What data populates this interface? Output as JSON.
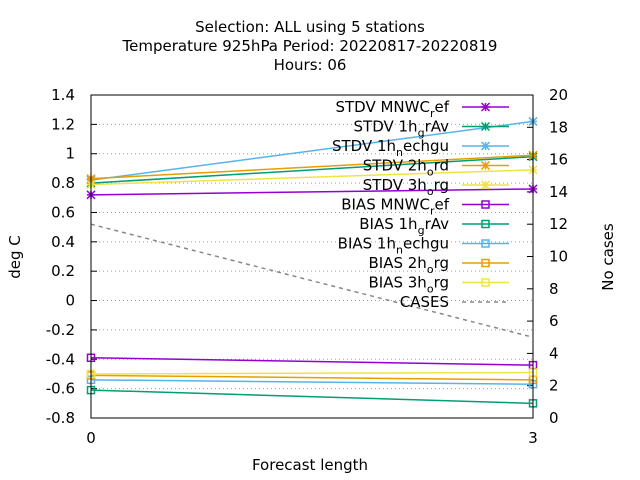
{
  "chart_data": {
    "type": "line",
    "title_lines": [
      "Selection: ALL using     5 stations",
      "Temperature 925hPa   Period: 20220817-20220819",
      "Hours:  06"
    ],
    "xlabel": "Forecast length",
    "ylabel": "deg C",
    "y2label": "No cases",
    "x": [
      0,
      3
    ],
    "xlim": [
      0,
      3
    ],
    "xticks": [
      "0",
      "3"
    ],
    "ylim": [
      -0.8,
      1.4
    ],
    "yticks": [
      "1.4",
      "1.2",
      "1",
      "0.8",
      "0.6",
      "0.4",
      "0.2",
      "0",
      "-0.2",
      "-0.4",
      "-0.6",
      "-0.8"
    ],
    "y2lim": [
      0,
      20
    ],
    "y2ticks": [
      "20",
      "18",
      "16",
      "14",
      "12",
      "10",
      "8",
      "6",
      "4",
      "2",
      "0"
    ],
    "grid": true,
    "legend_position": "top-right",
    "series": [
      {
        "name": "STDV MNWC_ref",
        "label_main": "STDV MNWC",
        "label_sub": "r",
        "label_tail": "ef",
        "color": "#9400d3",
        "marker": "x",
        "values": [
          0.72,
          0.76
        ],
        "axis": "y"
      },
      {
        "name": "STDV 1h_grAv",
        "label_main": "STDV 1h",
        "label_sub": "g",
        "label_tail": "rAv",
        "color": "#009e73",
        "marker": "x",
        "values": [
          0.8,
          0.98
        ],
        "axis": "y"
      },
      {
        "name": "STDV 1h_nechgu",
        "label_main": "STDV 1h",
        "label_sub": "n",
        "label_tail": "echgu",
        "color": "#56b4e9",
        "marker": "x",
        "values": [
          0.82,
          1.22
        ],
        "axis": "y"
      },
      {
        "name": "STDV 2h_ord",
        "label_main": "STDV 2h",
        "label_sub": "o",
        "label_tail": "rd",
        "color": "#e69f00",
        "marker": "x",
        "values": [
          0.83,
          0.99
        ],
        "axis": "y"
      },
      {
        "name": "STDV 3h_org",
        "label_main": "STDV 3h",
        "label_sub": "o",
        "label_tail": "rg",
        "color": "#f0e442",
        "marker": "x",
        "values": [
          0.79,
          0.89
        ],
        "axis": "y"
      },
      {
        "name": "BIAS MNWC_ref",
        "label_main": "BIAS MNWC",
        "label_sub": "r",
        "label_tail": "ef",
        "color": "#9400d3",
        "marker": "s",
        "values": [
          -0.39,
          -0.44
        ],
        "axis": "y"
      },
      {
        "name": "BIAS 1h_grAv",
        "label_main": "BIAS 1h",
        "label_sub": "g",
        "label_tail": "rAv",
        "color": "#009e73",
        "marker": "s",
        "values": [
          -0.61,
          -0.7
        ],
        "axis": "y"
      },
      {
        "name": "BIAS 1h_nechgu",
        "label_main": "BIAS 1h",
        "label_sub": "n",
        "label_tail": "echgu",
        "color": "#56b4e9",
        "marker": "s",
        "values": [
          -0.54,
          -0.57
        ],
        "axis": "y"
      },
      {
        "name": "BIAS 2h_org",
        "label_main": "BIAS 2h",
        "label_sub": "o",
        "label_tail": "rg",
        "color": "#e69f00",
        "marker": "s",
        "values": [
          -0.51,
          -0.54
        ],
        "axis": "y"
      },
      {
        "name": "BIAS 3h_org",
        "label_main": "BIAS 3h",
        "label_sub": "o",
        "label_tail": "rg",
        "color": "#f0e442",
        "marker": "s",
        "values": [
          -0.5,
          -0.49
        ],
        "axis": "y"
      },
      {
        "name": "CASES",
        "label_main": "CASES",
        "label_sub": "",
        "label_tail": "",
        "color": "#888888",
        "marker": "none",
        "dashed": true,
        "values": [
          12.0,
          5.0
        ],
        "axis": "y2"
      }
    ]
  }
}
